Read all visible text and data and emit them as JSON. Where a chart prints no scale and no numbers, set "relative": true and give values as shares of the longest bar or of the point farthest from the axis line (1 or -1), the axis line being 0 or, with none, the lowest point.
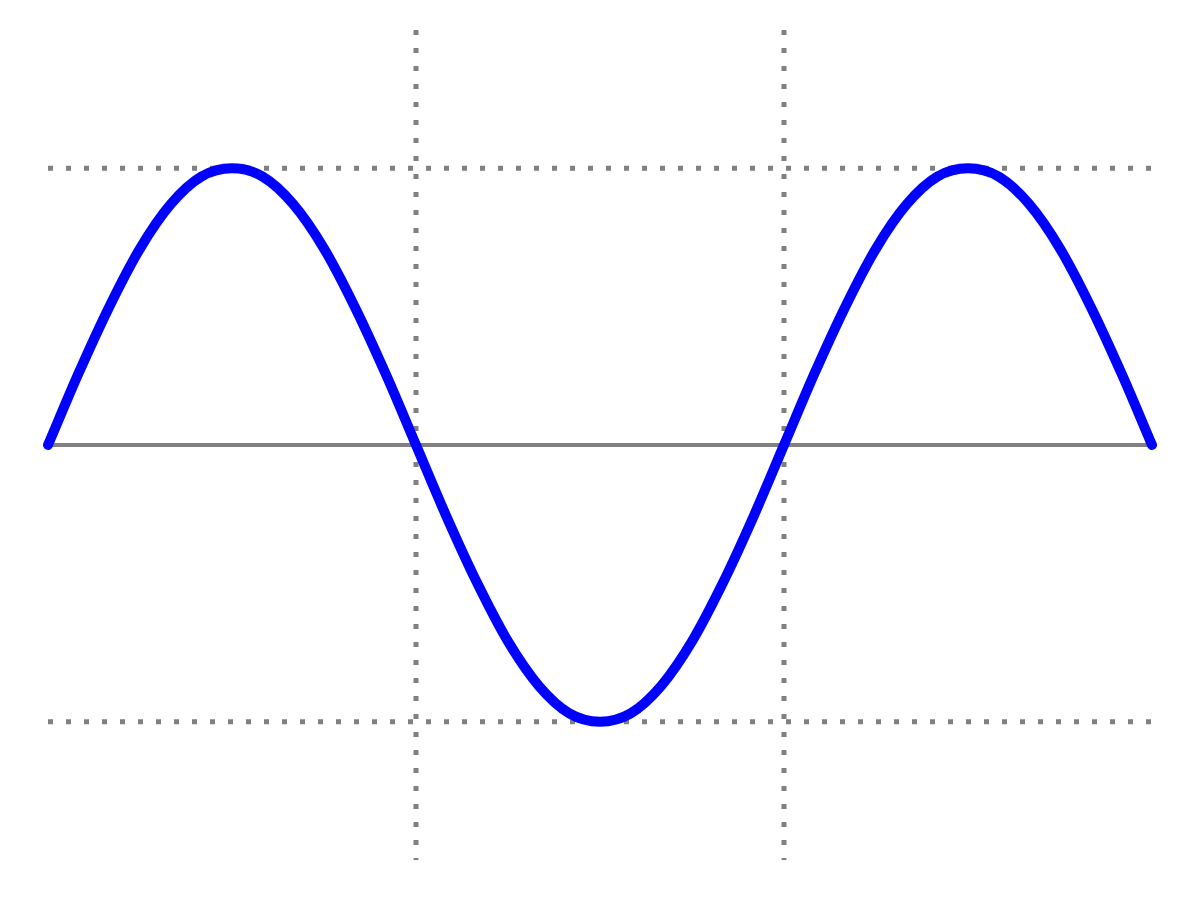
{
  "chart_data": {
    "type": "line",
    "relative": true,
    "categories": [
      null,
      null,
      null,
      null,
      null,
      null,
      null,
      null,
      null,
      null,
      null,
      null,
      null,
      null,
      null,
      null,
      null,
      null,
      null,
      null,
      null,
      null,
      null,
      null,
      null,
      null,
      null,
      null,
      null,
      null,
      null,
      null,
      null,
      null,
      null,
      null,
      null
    ],
    "series": [
      {
        "color": "#0000ff",
        "values": [
          0,
          0.26,
          0.5,
          0.71,
          0.87,
          0.97,
          1,
          0.97,
          0.87,
          0.71,
          0.5,
          0.26,
          0,
          -0.26,
          -0.5,
          -0.71,
          -0.87,
          -0.97,
          -1,
          -0.97,
          -0.87,
          -0.71,
          -0.5,
          -0.26,
          0,
          0.26,
          0.5,
          0.71,
          0.87,
          0.97,
          1,
          0.97,
          0.87,
          0.71,
          0.5,
          0.26,
          0
        ]
      }
    ]
  }
}
